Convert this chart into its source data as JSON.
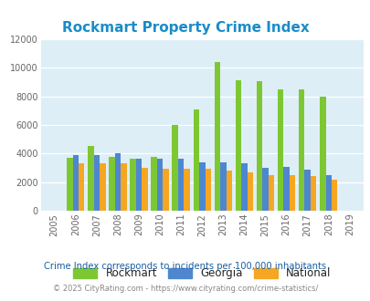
{
  "title": "Rockmart Property Crime Index",
  "years": [
    2005,
    2006,
    2007,
    2008,
    2009,
    2010,
    2011,
    2012,
    2013,
    2014,
    2015,
    2016,
    2017,
    2018,
    2019
  ],
  "rockmart": [
    0,
    3700,
    4500,
    3750,
    3650,
    3750,
    6000,
    7100,
    10400,
    9100,
    9050,
    8500,
    8500,
    8000,
    0
  ],
  "georgia": [
    0,
    3900,
    3900,
    4050,
    3650,
    3650,
    3650,
    3400,
    3350,
    3300,
    3000,
    3050,
    2850,
    2500,
    0
  ],
  "national": [
    0,
    3300,
    3300,
    3300,
    3000,
    2950,
    2950,
    2950,
    2800,
    2650,
    2500,
    2500,
    2400,
    2150,
    0
  ],
  "rockmart_color": "#7dc832",
  "georgia_color": "#4e87d0",
  "national_color": "#f5a623",
  "bg_color": "#ddeef7",
  "ylim": [
    0,
    12000
  ],
  "yticks": [
    0,
    2000,
    4000,
    6000,
    8000,
    10000,
    12000
  ],
  "title_color": "#1a8cc8",
  "title_fontsize": 11,
  "subtitle": "Crime Index corresponds to incidents per 100,000 inhabitants",
  "subtitle_color": "#1a5fa0",
  "footer": "© 2025 CityRating.com - https://www.cityrating.com/crime-statistics/",
  "footer_color": "#888888",
  "legend_labels": [
    "Rockmart",
    "Georgia",
    "National"
  ],
  "legend_text_color": "#222222",
  "bar_width": 0.28
}
